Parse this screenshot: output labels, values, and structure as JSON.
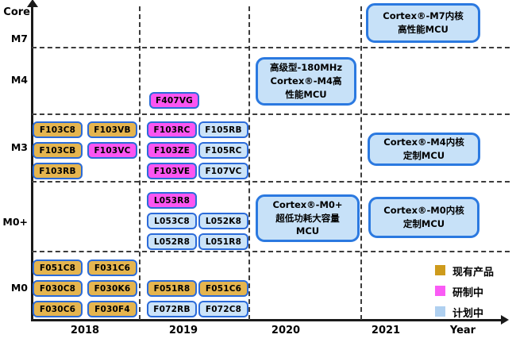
{
  "axes": {
    "y_title": "Core",
    "x_title": "Year",
    "y_labels": [
      "M7",
      "M4",
      "M3",
      "M0+",
      "M0"
    ],
    "x_labels": [
      "2018",
      "2019",
      "2020",
      "2021"
    ]
  },
  "legend": [
    {
      "label": "现有产品",
      "status": "existing",
      "color": "#CE9B1C"
    },
    {
      "label": "研制中",
      "status": "developing",
      "color": "#FA5BF5"
    },
    {
      "label": "计划中",
      "status": "planned",
      "color": "#AFD0F0"
    }
  ],
  "status_colors": {
    "existing": "#E5B54F",
    "developing": "#FB55F1",
    "planned": "#CBE3F9"
  },
  "chart_data": {
    "type": "scatter",
    "xlabel": "Year",
    "ylabel": "Core",
    "x_categories": [
      "2018",
      "2019",
      "2020",
      "2021"
    ],
    "y_categories": [
      "M7",
      "M4",
      "M3",
      "M0+",
      "M0"
    ],
    "legend_entries": [
      "现有产品",
      "研制中",
      "计划中"
    ],
    "groups": [
      {
        "id": "2019-M4",
        "year": "2019",
        "core": "M4",
        "rows": [
          [
            {
              "label": "F407VG",
              "status": "developing"
            }
          ]
        ]
      },
      {
        "id": "2018-M3",
        "year": "2018",
        "core": "M3",
        "rows": [
          [
            {
              "label": "F103C8",
              "status": "existing"
            },
            {
              "label": "F103VB",
              "status": "existing"
            }
          ],
          [
            {
              "label": "F103CB",
              "status": "existing"
            },
            {
              "label": "F103VC",
              "status": "developing"
            }
          ],
          [
            {
              "label": "F103RB",
              "status": "existing"
            }
          ]
        ]
      },
      {
        "id": "2019-M3",
        "year": "2019",
        "core": "M3",
        "rows": [
          [
            {
              "label": "F103RC",
              "status": "developing"
            },
            {
              "label": "F105RB",
              "status": "planned"
            }
          ],
          [
            {
              "label": "F103ZE",
              "status": "developing"
            },
            {
              "label": "F105RC",
              "status": "planned"
            }
          ],
          [
            {
              "label": "F103VE",
              "status": "developing"
            },
            {
              "label": "F107VC",
              "status": "planned"
            }
          ]
        ]
      },
      {
        "id": "2019-M0plus",
        "year": "2019",
        "core": "M0+",
        "rows": [
          [
            {
              "label": "L053R8",
              "status": "developing"
            }
          ],
          [
            {
              "label": "L053C8",
              "status": "planned"
            },
            {
              "label": "L052K8",
              "status": "planned"
            }
          ],
          [
            {
              "label": "L052R8",
              "status": "planned"
            },
            {
              "label": "L051R8",
              "status": "planned"
            }
          ]
        ]
      },
      {
        "id": "2018-M0",
        "year": "2018",
        "core": "M0",
        "rows": [
          [
            {
              "label": "F051C8",
              "status": "existing"
            },
            {
              "label": "F031C6",
              "status": "existing"
            }
          ],
          [
            {
              "label": "F030C8",
              "status": "existing"
            },
            {
              "label": "F030K6",
              "status": "existing"
            }
          ],
          [
            {
              "label": "F030C6",
              "status": "existing"
            },
            {
              "label": "F030F4",
              "status": "existing"
            }
          ]
        ]
      },
      {
        "id": "2019-M0",
        "year": "2019",
        "core": "M0",
        "rows": [
          [
            {
              "label": "F051R8",
              "status": "existing"
            },
            {
              "label": "F051C6",
              "status": "existing"
            }
          ],
          [
            {
              "label": "F072RB",
              "status": "planned"
            },
            {
              "label": "F072C8",
              "status": "planned"
            }
          ]
        ]
      }
    ],
    "annotations": [
      {
        "id": "m7-highperf",
        "lines": [
          "Cortex®-M7内核",
          "高性能MCU"
        ]
      },
      {
        "id": "m4-advanced",
        "lines": [
          "高级型-180MHz",
          "Cortex®-M4高",
          "性能MCU"
        ]
      },
      {
        "id": "m4-custom",
        "lines": [
          "Cortex®-M4内核",
          "定制MCU"
        ]
      },
      {
        "id": "m0plus-lowpower",
        "lines": [
          "Cortex®-M0+",
          "超低功耗大容量",
          "MCU"
        ]
      },
      {
        "id": "m0-custom",
        "lines": [
          "Cortex®-M0内核",
          "定制MCU"
        ]
      }
    ]
  }
}
